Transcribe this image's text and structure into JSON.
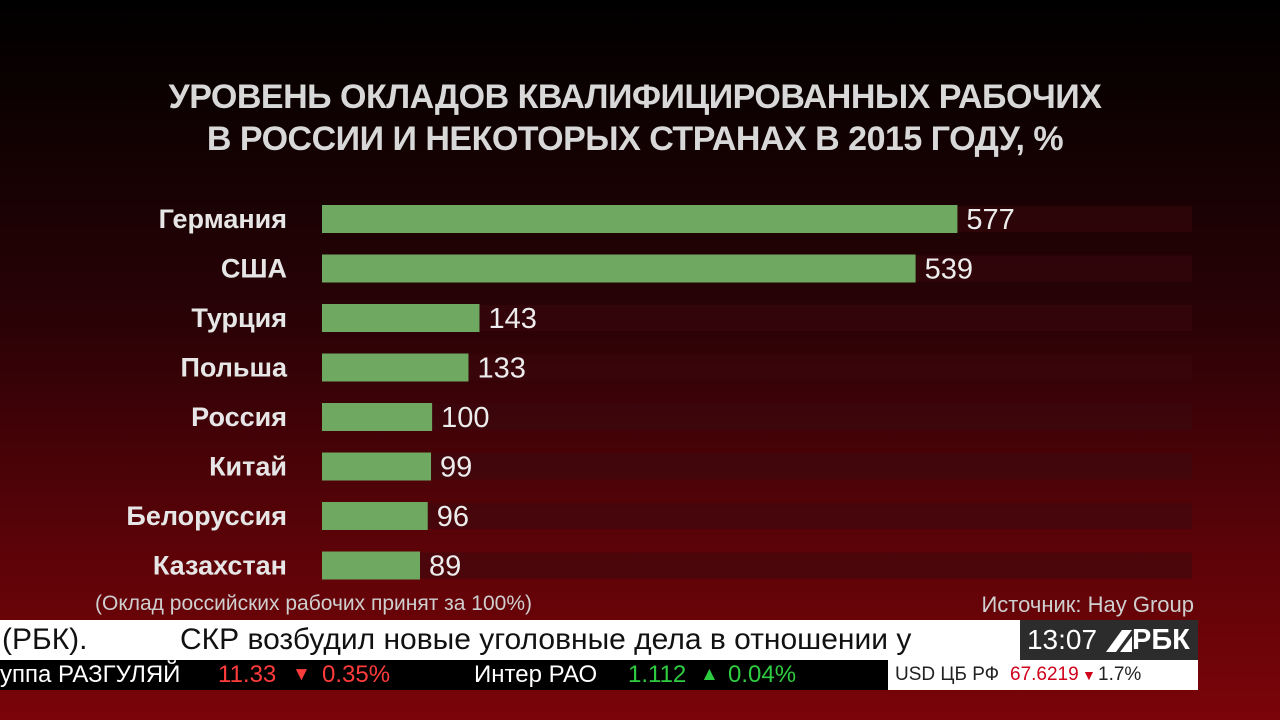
{
  "chart_data": {
    "type": "bar",
    "orientation": "horizontal",
    "title_lines": [
      "УРОВЕНЬ ОКЛАДОВ КВАЛИФИЦИРОВАННЫХ РАБОЧИХ",
      "В РОССИИ И НЕКОТОРЫХ СТРАНАХ В 2015 ГОДУ, %"
    ],
    "categories": [
      "Германия",
      "США",
      "Турция",
      "Польша",
      "Россия",
      "Китай",
      "Белоруссия",
      "Казахстан"
    ],
    "values": [
      577,
      539,
      143,
      133,
      100,
      99,
      96,
      89
    ],
    "xlim": [
      0,
      790
    ],
    "bar_color": "#6fa860",
    "track_color": "#3a0a0e",
    "grid": false,
    "legend": "none"
  },
  "footnote": "(Оклад российских рабочих принят за 100%)",
  "source": "Источник: Hay Group",
  "ticker": {
    "previous_fragment": "(РБК).",
    "headline": "СКР возбудил новые уголовные дела в отношении у"
  },
  "clock": "13:07",
  "logo_text": "РБК",
  "stocks": [
    {
      "name": "уппа РАЗГУЛЯЙ",
      "price": "11.33",
      "direction": "down",
      "arrow": "▼",
      "change": "0.35%"
    },
    {
      "name": "Интер РАО",
      "price": "1.112",
      "direction": "up",
      "arrow": "▲",
      "change": "0.04%"
    }
  ],
  "currency": {
    "label": "USD ЦБ РФ",
    "value": "67.6219",
    "arrow": "▼",
    "change": "1.7%"
  }
}
